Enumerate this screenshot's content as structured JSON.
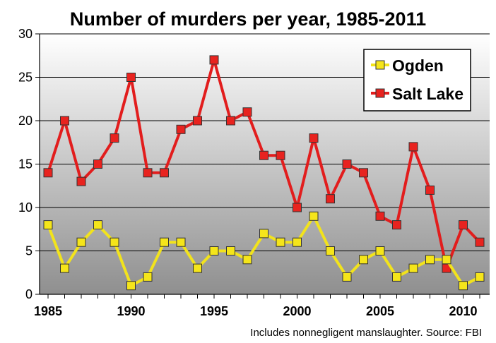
{
  "chart_data": {
    "type": "line",
    "title": "Number of murders per year, 1985-2011",
    "x": [
      1985,
      1986,
      1987,
      1988,
      1989,
      1990,
      1991,
      1992,
      1993,
      1994,
      1995,
      1996,
      1997,
      1998,
      1999,
      2000,
      2001,
      2002,
      2003,
      2004,
      2005,
      2006,
      2007,
      2008,
      2009,
      2010,
      2011
    ],
    "xticks": [
      "1985",
      "1990",
      "1995",
      "2000",
      "2005",
      "2010"
    ],
    "xtick_values": [
      1985,
      1990,
      1995,
      2000,
      2005,
      2010
    ],
    "yticks": [
      "0",
      "5",
      "10",
      "15",
      "20",
      "25",
      "30"
    ],
    "ylim": [
      0,
      30
    ],
    "xlim": [
      1985,
      2011
    ],
    "grid": true,
    "legend_position": "top-right",
    "series": [
      {
        "name": "Ogden",
        "color": "#f5e51a",
        "line_color": "#f2e31c",
        "marker_edge": "#333333",
        "values": [
          8,
          3,
          6,
          8,
          6,
          1,
          2,
          6,
          6,
          3,
          5,
          5,
          4,
          7,
          6,
          6,
          9,
          5,
          2,
          4,
          5,
          2,
          3,
          4,
          4,
          1,
          2
        ]
      },
      {
        "name": "Salt Lake",
        "color": "#e8231f",
        "line_color": "#e21d1d",
        "marker_edge": "#333333",
        "values": [
          14,
          20,
          13,
          15,
          18,
          25,
          14,
          14,
          19,
          20,
          27,
          20,
          21,
          16,
          16,
          10,
          18,
          11,
          15,
          14,
          9,
          8,
          17,
          12,
          3,
          8,
          6
        ]
      }
    ],
    "note": "Includes nonnegligent manslaughter. Source: FBI"
  }
}
